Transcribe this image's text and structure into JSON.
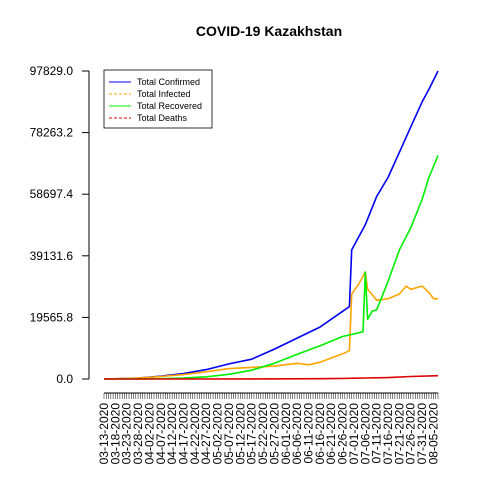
{
  "chart_data": {
    "type": "line",
    "title": "COVID-19 Kazakhstan",
    "xlabel": "",
    "ylabel": "",
    "x_start": "2020-03-13",
    "x_end": "2020-08-07",
    "x_tick_labels": [
      "03-13-2020",
      "03-18-2020",
      "03-23-2020",
      "03-28-2020",
      "04-02-2020",
      "04-07-2020",
      "04-12-2020",
      "04-17-2020",
      "04-22-2020",
      "04-27-2020",
      "05-02-2020",
      "05-07-2020",
      "05-12-2020",
      "05-17-2020",
      "05-22-2020",
      "05-27-2020",
      "06-01-2020",
      "06-06-2020",
      "06-11-2020",
      "06-16-2020",
      "06-21-2020",
      "06-26-2020",
      "07-01-2020",
      "07-06-2020",
      "07-11-2020",
      "07-16-2020",
      "07-21-2020",
      "07-26-2020",
      "07-31-2020",
      "08-05-2020"
    ],
    "y_tick_labels": [
      "0.0",
      "19565.8",
      "39131.6",
      "58697.4",
      "78263.2",
      "97829.0"
    ],
    "ylim": [
      0,
      97829
    ],
    "legend_position": "top-left",
    "grid": false,
    "series": [
      {
        "name": "Total Confirmed",
        "color": "#0000ee",
        "dash": "solid",
        "points": [
          [
            "2020-03-13",
            10
          ],
          [
            "2020-03-28",
            300
          ],
          [
            "2020-04-07",
            900
          ],
          [
            "2020-04-17",
            1700
          ],
          [
            "2020-04-27",
            3000
          ],
          [
            "2020-05-07",
            4800
          ],
          [
            "2020-05-17",
            6300
          ],
          [
            "2020-05-27",
            9500
          ],
          [
            "2020-06-06",
            13000
          ],
          [
            "2020-06-16",
            16500
          ],
          [
            "2020-06-26",
            21500
          ],
          [
            "2020-06-29",
            23000
          ],
          [
            "2020-06-30",
            41000
          ],
          [
            "2020-07-03",
            45000
          ],
          [
            "2020-07-06",
            49000
          ],
          [
            "2020-07-11",
            58000
          ],
          [
            "2020-07-16",
            64000
          ],
          [
            "2020-07-21",
            72000
          ],
          [
            "2020-07-26",
            80000
          ],
          [
            "2020-07-31",
            88000
          ],
          [
            "2020-08-03",
            92000
          ],
          [
            "2020-08-07",
            97829
          ]
        ]
      },
      {
        "name": "Total Infected",
        "color": "#ffa500",
        "dash": "dashed",
        "points": [
          [
            "2020-03-13",
            10
          ],
          [
            "2020-03-28",
            280
          ],
          [
            "2020-04-07",
            800
          ],
          [
            "2020-04-17",
            1400
          ],
          [
            "2020-04-27",
            2300
          ],
          [
            "2020-05-07",
            3300
          ],
          [
            "2020-05-17",
            3700
          ],
          [
            "2020-05-27",
            4100
          ],
          [
            "2020-06-06",
            5000
          ],
          [
            "2020-06-11",
            4500
          ],
          [
            "2020-06-16",
            5300
          ],
          [
            "2020-06-26",
            8000
          ],
          [
            "2020-06-29",
            9000
          ],
          [
            "2020-06-30",
            27000
          ],
          [
            "2020-07-03",
            30000
          ],
          [
            "2020-07-06",
            34000
          ],
          [
            "2020-07-07",
            28500
          ],
          [
            "2020-07-11",
            25000
          ],
          [
            "2020-07-16",
            25500
          ],
          [
            "2020-07-21",
            27000
          ],
          [
            "2020-07-24",
            29500
          ],
          [
            "2020-07-26",
            28500
          ],
          [
            "2020-07-31",
            29500
          ],
          [
            "2020-08-03",
            27500
          ],
          [
            "2020-08-05",
            25500
          ],
          [
            "2020-08-07",
            25500
          ]
        ]
      },
      {
        "name": "Total Recovered",
        "color": "#00ee00",
        "dash": "solid",
        "points": [
          [
            "2020-03-13",
            0
          ],
          [
            "2020-03-28",
            20
          ],
          [
            "2020-04-07",
            100
          ],
          [
            "2020-04-17",
            300
          ],
          [
            "2020-04-27",
            700
          ],
          [
            "2020-05-07",
            1500
          ],
          [
            "2020-05-17",
            2800
          ],
          [
            "2020-05-27",
            5000
          ],
          [
            "2020-06-06",
            7800
          ],
          [
            "2020-06-16",
            10500
          ],
          [
            "2020-06-26",
            13500
          ],
          [
            "2020-07-05",
            15000
          ],
          [
            "2020-07-06",
            34000
          ],
          [
            "2020-07-07",
            19000
          ],
          [
            "2020-07-09",
            21500
          ],
          [
            "2020-07-11",
            22000
          ],
          [
            "2020-07-16",
            31000
          ],
          [
            "2020-07-21",
            41000
          ],
          [
            "2020-07-26",
            48000
          ],
          [
            "2020-07-31",
            57000
          ],
          [
            "2020-08-03",
            64000
          ],
          [
            "2020-08-07",
            71000
          ]
        ]
      },
      {
        "name": "Total Deaths",
        "color": "#dd0000",
        "dash": "dashed",
        "points": [
          [
            "2020-03-13",
            0
          ],
          [
            "2020-04-17",
            15
          ],
          [
            "2020-05-17",
            40
          ],
          [
            "2020-06-16",
            100
          ],
          [
            "2020-06-26",
            190
          ],
          [
            "2020-07-06",
            330
          ],
          [
            "2020-07-16",
            450
          ],
          [
            "2020-07-26",
            800
          ],
          [
            "2020-08-07",
            1050
          ]
        ]
      }
    ]
  }
}
